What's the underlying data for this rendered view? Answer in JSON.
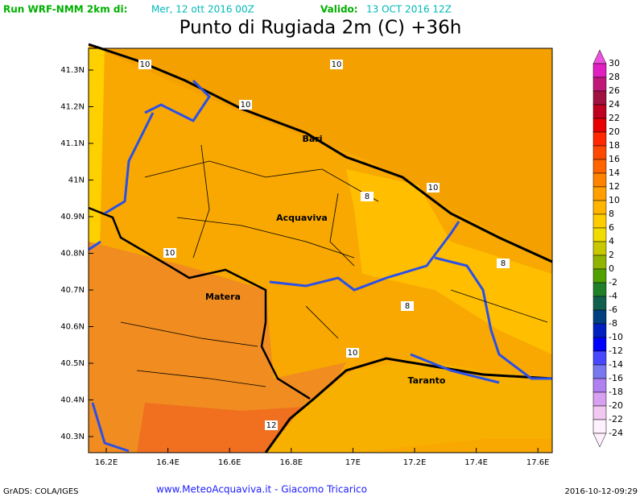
{
  "header": {
    "run_label": "Run WRF-NMM 2km di:",
    "run_date": "Mer, 12 ott 2016 00Z",
    "valid_label": "Valido:",
    "valid_date": "13 OCT 2016 12Z",
    "title": "Punto di Rugiada 2m (C) +36h"
  },
  "map": {
    "lat_ticks": [
      "41.3N",
      "41.2N",
      "41.1N",
      "41N",
      "40.9N",
      "40.8N",
      "40.7N",
      "40.6N",
      "40.5N",
      "40.4N",
      "40.3N"
    ],
    "lon_ticks": [
      "16.2E",
      "16.4E",
      "16.6E",
      "16.8E",
      "17E",
      "17.2E",
      "17.4E",
      "17.6E"
    ],
    "cities": [
      "Bari",
      "Acquaviva",
      "Matera",
      "Taranto"
    ],
    "contour_labels": [
      "10",
      "10",
      "10",
      "10",
      "10",
      "10",
      "8",
      "8",
      "8",
      "12"
    ]
  },
  "legend": {
    "levels": [
      30,
      28,
      26,
      24,
      22,
      20,
      18,
      16,
      14,
      12,
      10,
      8,
      6,
      4,
      2,
      0,
      -2,
      -4,
      -6,
      -8,
      -10,
      -12,
      -14,
      -16,
      -18,
      -20,
      -22,
      -24
    ],
    "colors": [
      "#f050e0",
      "#e020c0",
      "#c01878",
      "#a01040",
      "#c00020",
      "#e80000",
      "#ff2800",
      "#ff4800",
      "#ff6400",
      "#ff8200",
      "#ffa000",
      "#ffb400",
      "#ffcc00",
      "#f0dc00",
      "#c8c800",
      "#90b400",
      "#50a000",
      "#208028",
      "#106050",
      "#004080",
      "#0020c0",
      "#0000ff",
      "#4848ff",
      "#7878f0",
      "#b080f0",
      "#d8a0f0",
      "#f0c8f0",
      "#fff0ff"
    ]
  },
  "footer": {
    "credit": "GrADS: COLA/IGES",
    "site": "www.MeteoAcquaviva.it - Giacomo Tricarico",
    "timestamp": "2016-10-12-09:29"
  }
}
